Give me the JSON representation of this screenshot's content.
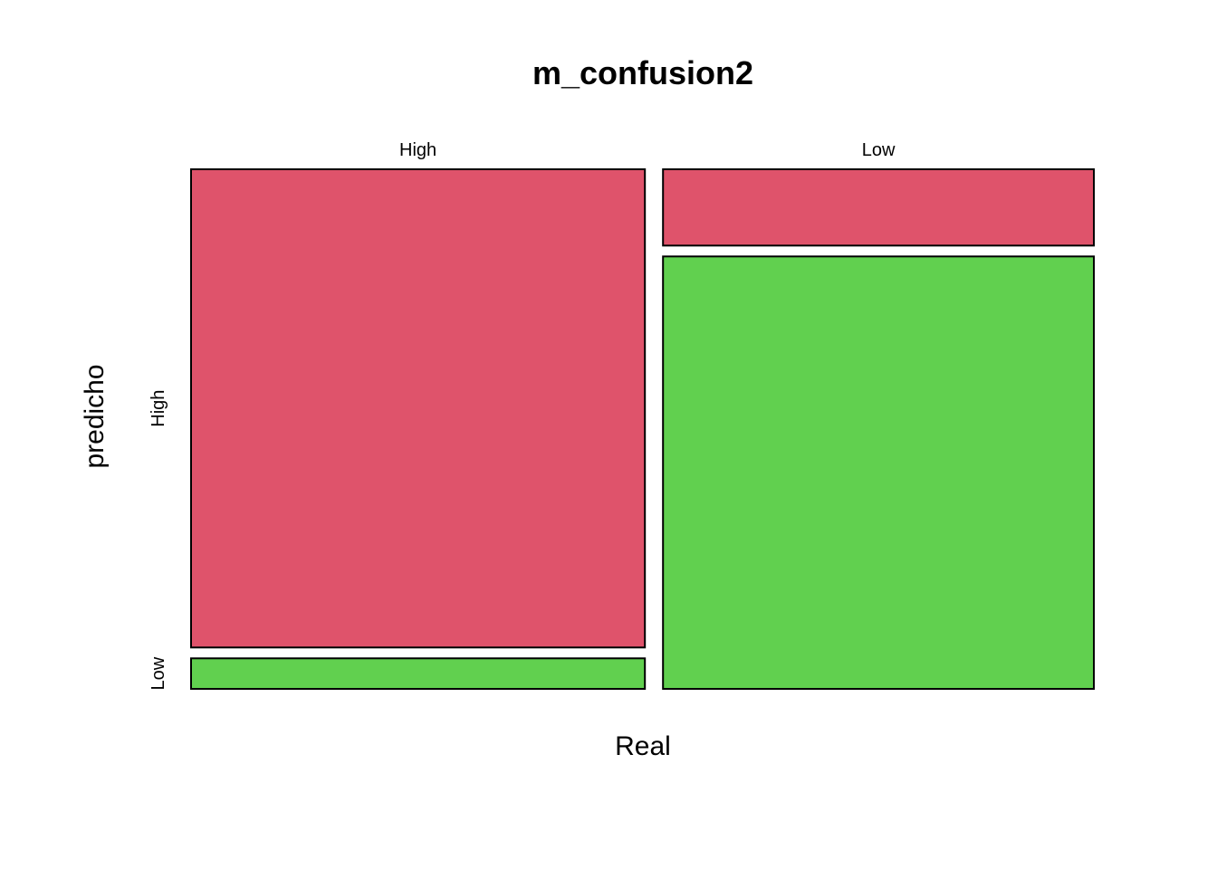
{
  "chart_data": {
    "type": "mosaic",
    "title": "m_confusion2",
    "xlabel": "Real",
    "ylabel": "predicho",
    "x_categories": [
      "High",
      "Low"
    ],
    "y_categories": [
      "High",
      "Low"
    ],
    "column_proportions": [
      0.513,
      0.487
    ],
    "cells": [
      {
        "real": "High",
        "predicho": "High",
        "proportion_within_column": 0.94
      },
      {
        "real": "High",
        "predicho": "Low",
        "proportion_within_column": 0.06
      },
      {
        "real": "Low",
        "predicho": "High",
        "proportion_within_column": 0.15
      },
      {
        "real": "Low",
        "predicho": "Low",
        "proportion_within_column": 0.85
      }
    ],
    "colors": {
      "High": "#DF536B",
      "Low": "#61D04F"
    }
  }
}
